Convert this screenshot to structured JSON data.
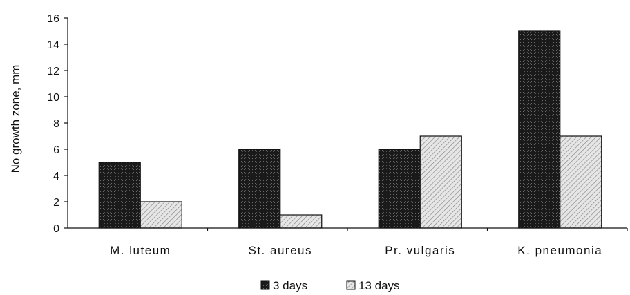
{
  "chart_data": {
    "type": "bar",
    "title": "",
    "xlabel": "",
    "ylabel": "No growth zone, mm",
    "categories": [
      "M. luteum",
      "St. aureus",
      "Pr. vulgaris",
      "K. pneumonia"
    ],
    "series": [
      {
        "name": "3 days",
        "values": [
          5,
          6,
          6,
          15
        ],
        "color": "#111111",
        "pattern": "dark-dotted"
      },
      {
        "name": "13 days",
        "values": [
          2,
          1,
          7,
          7
        ],
        "color": "#d8d8d8",
        "pattern": "light-hatched"
      }
    ],
    "ylim": [
      0,
      16
    ],
    "yticks": [
      "0",
      "2",
      "4",
      "6",
      "8",
      "10",
      "12",
      "14",
      "16"
    ],
    "grid": false,
    "legend_position": "bottom-center"
  }
}
